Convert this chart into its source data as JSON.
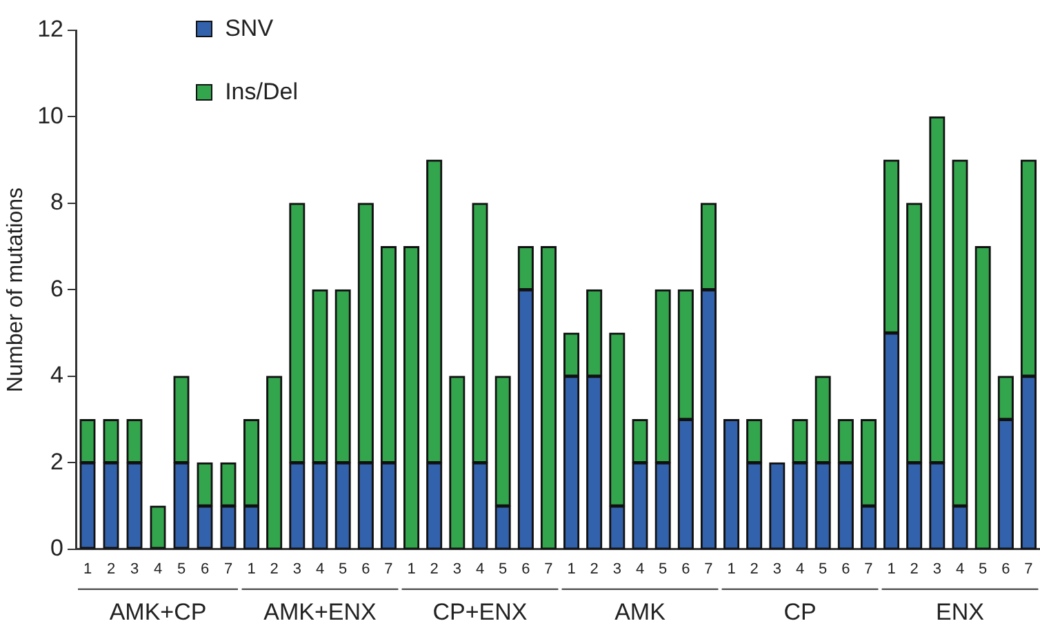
{
  "chart_data": [
    {
      "type": "bar",
      "stacked": true,
      "xlabel": "AMK+CP",
      "ylabel": "Number of mutations",
      "ylim": [
        0,
        12
      ],
      "yticks": [
        0,
        2,
        4,
        6,
        8,
        10,
        12
      ],
      "grid": false,
      "legend": "top right",
      "categories": [
        "1",
        "2",
        "3",
        "4",
        "5",
        "6",
        "7"
      ],
      "series": [
        {
          "name": "SNV",
          "color": "#3362ad",
          "values": [
            2,
            2,
            2,
            0,
            2,
            1,
            1
          ]
        },
        {
          "name": "Ins/Del",
          "color": "#33a54d",
          "values": [
            1,
            1,
            1,
            1,
            2,
            1,
            1
          ]
        }
      ]
    },
    {
      "type": "bar",
      "stacked": true,
      "xlabel": "AMK+ENX",
      "ylim": [
        0,
        12
      ],
      "yticks": [
        0,
        2,
        4,
        6,
        8,
        10,
        12
      ],
      "tick_labels": "x",
      "grid": false,
      "categories": [
        "1",
        "2",
        "3",
        "4",
        "5",
        "6",
        "7"
      ],
      "series": [
        {
          "color": "#3362ad",
          "values": [
            1,
            0,
            2,
            2,
            2,
            2,
            2
          ]
        },
        {
          "color": "#33a54d",
          "values": [
            2,
            4,
            6,
            4,
            4,
            6,
            5
          ]
        }
      ]
    },
    {
      "type": "bar",
      "stacked": true,
      "xlabel": "CP+ENX",
      "ylim": [
        0,
        12
      ],
      "yticks": [
        0,
        2,
        4,
        6,
        8,
        10,
        12
      ],
      "tick_labels": "x",
      "grid": false,
      "categories": [
        "1",
        "2",
        "3",
        "4",
        "5",
        "6",
        "7"
      ],
      "series": [
        {
          "color": "#3362ad",
          "values": [
            0,
            2,
            0,
            2,
            1,
            6,
            0
          ]
        },
        {
          "color": "#33a54d",
          "values": [
            7,
            7,
            4,
            6,
            3,
            1,
            7
          ]
        }
      ]
    },
    {
      "type": "bar",
      "stacked": true,
      "xlabel": "AMK",
      "ylim": [
        0,
        12
      ],
      "yticks": [
        0,
        2,
        4,
        6,
        8,
        10,
        12
      ],
      "tick_labels": "x",
      "grid": false,
      "categories": [
        "1",
        "2",
        "3",
        "4",
        "5",
        "6",
        "7"
      ],
      "series": [
        {
          "color": "#3362ad",
          "values": [
            4,
            4,
            1,
            2,
            2,
            3,
            6
          ]
        },
        {
          "color": "#33a54d",
          "values": [
            1,
            2,
            4,
            1,
            4,
            3,
            2
          ]
        }
      ]
    },
    {
      "type": "bar",
      "stacked": true,
      "xlabel": "CP",
      "ylim": [
        0,
        12
      ],
      "yticks": [
        0,
        2,
        4,
        6,
        8,
        10,
        12
      ],
      "tick_labels": "x",
      "grid": false,
      "categories": [
        "1",
        "2",
        "3",
        "4",
        "5",
        "6",
        "7"
      ],
      "series": [
        {
          "color": "#3362ad",
          "values": [
            3,
            2,
            2,
            2,
            2,
            2,
            1
          ]
        },
        {
          "color": "#33a54d",
          "values": [
            0,
            1,
            0,
            1,
            2,
            1,
            2
          ]
        }
      ]
    },
    {
      "type": "bar",
      "stacked": true,
      "xlabel": "ENX",
      "ylim": [
        0,
        12
      ],
      "yticks": [
        0,
        2,
        4,
        6,
        8,
        10,
        12
      ],
      "tick_labels": "x",
      "grid": false,
      "categories": [
        "1",
        "2",
        "3",
        "4",
        "5",
        "6",
        "7"
      ],
      "series": [
        {
          "color": "#3362ad",
          "values": [
            5,
            2,
            2,
            1,
            0,
            3,
            4
          ]
        },
        {
          "color": "#33a54d",
          "values": [
            4,
            6,
            8,
            8,
            7,
            1,
            5
          ]
        }
      ]
    }
  ]
}
